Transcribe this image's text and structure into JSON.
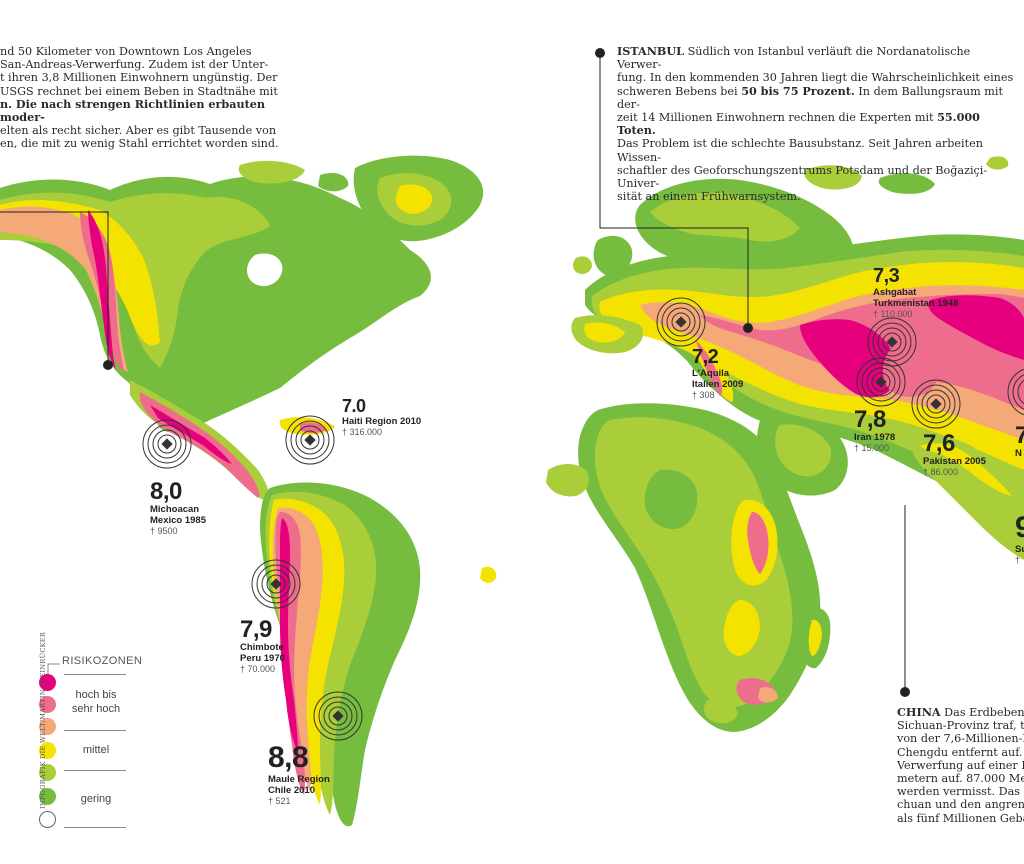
{
  "texts": {
    "la": {
      "lines": [
        "nd 50 Kilometer von Downtown Los Angeles",
        "San-Andreas-Verwerfung. Zudem ist der Unter-",
        "t ihren 3,8 Millionen Einwohnern ungünstig. Der",
        "USGS rechnet bei einem Beben in Stadtnähe mit",
        "n. Die nach strengen Richtlinien erbauten moder-",
        "elten als recht sicher. Aber es gibt Tausende von",
        "en, die mit zu wenig Stahl errichtet worden sind."
      ]
    },
    "istanbul": {
      "head": "ISTANBUL",
      "l1": " Südlich von Istanbul verläuft die Nordanatolische Verwer-",
      "l2": "fung. In den kommenden 30 Jahren liegt die Wahrscheinlichkeit eines",
      "l3a": "schweren Bebens bei ",
      "l3b": "50 bis 75 Prozent.",
      "l3c": " In dem Ballungsraum mit der-",
      "l4": "zeit 14 Millionen Einwohnern rechnen die Experten mit ",
      "l4b": "55.000 Toten.",
      "l5": "Das Problem ist die schlechte Bausubstanz. Seit Jahren arbeiten Wissen-",
      "l6": "schaftler des Geoforschungszentrums Potsdam und der Boğaziçi-Univer-",
      "l7": "sität an einem Frühwarnsystem."
    },
    "china": {
      "head": "CHINA",
      "lines": [
        " Das Erdbeben, d",
        "Sichuan-Provinz traf, tr",
        "von der 7,6-Millionen-E",
        "Chengdu entfernt auf. I",
        "Verwerfung auf einer Lä",
        "metern auf. 87.000 Men",
        "werden vermisst. Das B",
        "chuan und den angrenz",
        "als fünf Millionen Gebä"
      ]
    }
  },
  "quakes": [
    {
      "mag": "8,0",
      "place1": "Michoacan",
      "place2": "Mexico 1985",
      "deaths": "† 9500"
    },
    {
      "mag": "7.0",
      "place1": "Haiti Region 2010",
      "place2": "",
      "deaths": "† 316.000"
    },
    {
      "mag": "7,9",
      "place1": "Chimbote",
      "place2": "Peru 1970",
      "deaths": "† 70.000"
    },
    {
      "mag": "8,8",
      "place1": "Maule Region",
      "place2": "Chile 2010",
      "deaths": "† 521"
    },
    {
      "mag": "7,2",
      "place1": "L'Aquila",
      "place2": "Italien 2009",
      "deaths": "† 308"
    },
    {
      "mag": "7,3",
      "place1": "Ashgabat",
      "place2": "Turkmenistan 1948",
      "deaths": "† 110.000"
    },
    {
      "mag": "7,8",
      "place1": "Iran 1978",
      "place2": "",
      "deaths": "† 15.000"
    },
    {
      "mag": "7,6",
      "place1": "Pakistan 2005",
      "place2": "",
      "deaths": "† 86.000"
    },
    {
      "mag": "7",
      "place1": "N",
      "place2": "",
      "deaths": ""
    },
    {
      "mag": "9",
      "place1": "Su",
      "place2": "",
      "deaths": "† "
    }
  ],
  "legend": {
    "title": "RISIKOZONEN",
    "high": "hoch bis sehr hoch",
    "mid": "mittel",
    "low": "gering",
    "colors": [
      "#e6007e",
      "#ee6d8c",
      "#f5a878",
      "#f4e300",
      "#aacd3a",
      "#76bd3f",
      "#ffffff"
    ]
  },
  "credit": "INFOGRAFIK DIE WELT/MARTIN STEINRÜCKER"
}
